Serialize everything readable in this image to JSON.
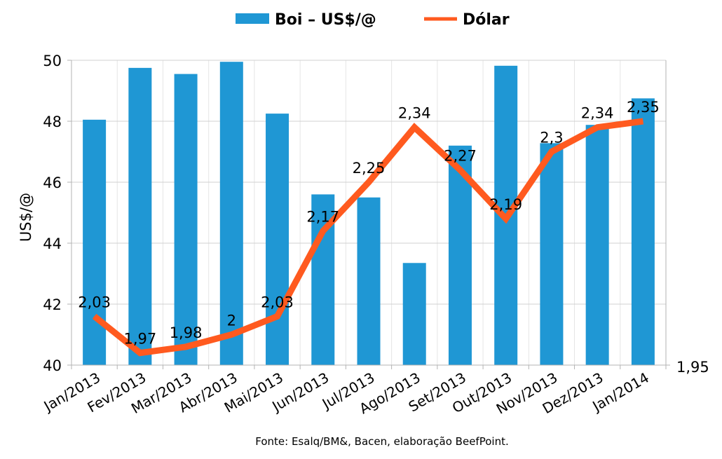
{
  "chart_data": {
    "type": "bar",
    "categories": [
      "Jan/2013",
      "Fev/2013",
      "Mar/2013",
      "Abr/2013",
      "Mai/2013",
      "Jun/2013",
      "Jul/2013",
      "Ago/2013",
      "Set/2013",
      "Out/2013",
      "Nov/2013",
      "Dez/2013",
      "Jan/2014"
    ],
    "series": [
      {
        "name": "Boi – US$/@",
        "type": "bar",
        "axis": "left",
        "color": "#1f97d4",
        "values": [
          48.05,
          49.75,
          49.55,
          49.95,
          48.25,
          45.6,
          45.5,
          43.35,
          47.2,
          49.82,
          47.28,
          47.88,
          48.75
        ]
      },
      {
        "name": "Dólar",
        "type": "line",
        "axis": "right",
        "color": "#ff5a1f",
        "values": [
          2.03,
          1.97,
          1.98,
          2,
          2.03,
          2.17,
          2.25,
          2.34,
          2.27,
          2.19,
          2.3,
          2.34,
          2.35
        ],
        "labels": [
          "2,03",
          "1,97",
          "1,98",
          "2",
          "2,03",
          "2,17",
          "2,25",
          "2,34",
          "2,27",
          "2,19",
          "2,3",
          "2,34",
          "2,35"
        ]
      }
    ],
    "ylabel": "US$/@",
    "ylim": [
      40,
      50
    ],
    "yticks": [
      "40",
      "42",
      "44",
      "46",
      "48",
      "50"
    ],
    "y2_tick_label": "1,95",
    "legend_position": "top-center",
    "grid": true,
    "source_note": "Fonte: Esalq/BM&, Bacen, elaboração BeefPoint."
  }
}
